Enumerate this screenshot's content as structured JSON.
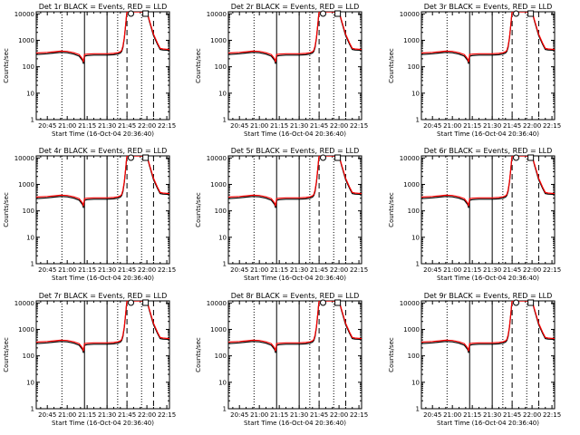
{
  "chart_data": {
    "type": "line",
    "layout": "3x3 grid of panels",
    "x_axis": {
      "label": "Start Time (16-Oct-04 20:36:40)",
      "tick_labels": [
        "20:45",
        "21:00",
        "21:15",
        "21:30",
        "21:45",
        "22:00",
        "22:15"
      ],
      "tick_minutes": [
        525,
        540,
        555,
        570,
        585,
        600,
        615
      ],
      "range_minutes": [
        516.67,
        617
      ]
    },
    "y_axis": {
      "label": "Counts/sec",
      "scale": "log",
      "range": [
        1,
        12000
      ],
      "tick_values": [
        1,
        10,
        100,
        1000,
        10000
      ],
      "tick_labels": [
        "1",
        "10",
        "100",
        "1000",
        "10000"
      ]
    },
    "markers": {
      "dotted_minutes": [
        536,
        578,
        596
      ],
      "solid_minutes": [
        553,
        570
      ],
      "dashed_minutes": [
        585,
        605
      ],
      "symbols": [
        {
          "shape": "circle",
          "minute": 588
        },
        {
          "shape": "square",
          "minute": 599
        }
      ]
    },
    "series_style": [
      {
        "name": "Events",
        "color": "#000000"
      },
      {
        "name": "LLD",
        "color": "#ff0000"
      }
    ],
    "curve": {
      "x_minutes": [
        516.67,
        525,
        530,
        535,
        540,
        545,
        549,
        551.5,
        552.2,
        553,
        555,
        560,
        565,
        570,
        575,
        578,
        580,
        581,
        582,
        583,
        584,
        584.5,
        585,
        585.5,
        586,
        591,
        592,
        593,
        594,
        595,
        596,
        597,
        598,
        599,
        600,
        602,
        605,
        608,
        610,
        612,
        617
      ],
      "events": [
        290,
        310,
        330,
        350,
        340,
        300,
        250,
        175,
        130,
        250,
        265,
        275,
        275,
        275,
        285,
        300,
        330,
        380,
        550,
        1200,
        3500,
        7000,
        12000,
        12000,
        12000,
        12000,
        12000,
        12000,
        12000,
        12000,
        12000,
        12000,
        12000,
        12000,
        12000,
        5000,
        1500,
        700,
        450,
        430,
        420
      ],
      "lld": [
        330,
        350,
        370,
        390,
        380,
        340,
        290,
        200,
        150,
        290,
        300,
        310,
        310,
        310,
        320,
        340,
        370,
        420,
        620,
        1300,
        3800,
        7500,
        12000,
        12000,
        12000,
        12000,
        12000,
        12000,
        12000,
        12000,
        12000,
        12000,
        12000,
        12000,
        12000,
        5500,
        1700,
        780,
        500,
        470,
        450
      ]
    },
    "panels": [
      {
        "title": "Det 1r BLACK = Events, RED = LLD"
      },
      {
        "title": "Det 2r BLACK = Events, RED = LLD"
      },
      {
        "title": "Det 3r BLACK = Events, RED = LLD"
      },
      {
        "title": "Det 4r BLACK = Events, RED = LLD"
      },
      {
        "title": "Det 5r BLACK = Events, RED = LLD"
      },
      {
        "title": "Det 6r BLACK = Events, RED = LLD"
      },
      {
        "title": "Det 7r BLACK = Events, RED = LLD"
      },
      {
        "title": "Det 8r BLACK = Events, RED = LLD"
      },
      {
        "title": "Det 9r BLACK = Events, RED = LLD"
      }
    ]
  }
}
